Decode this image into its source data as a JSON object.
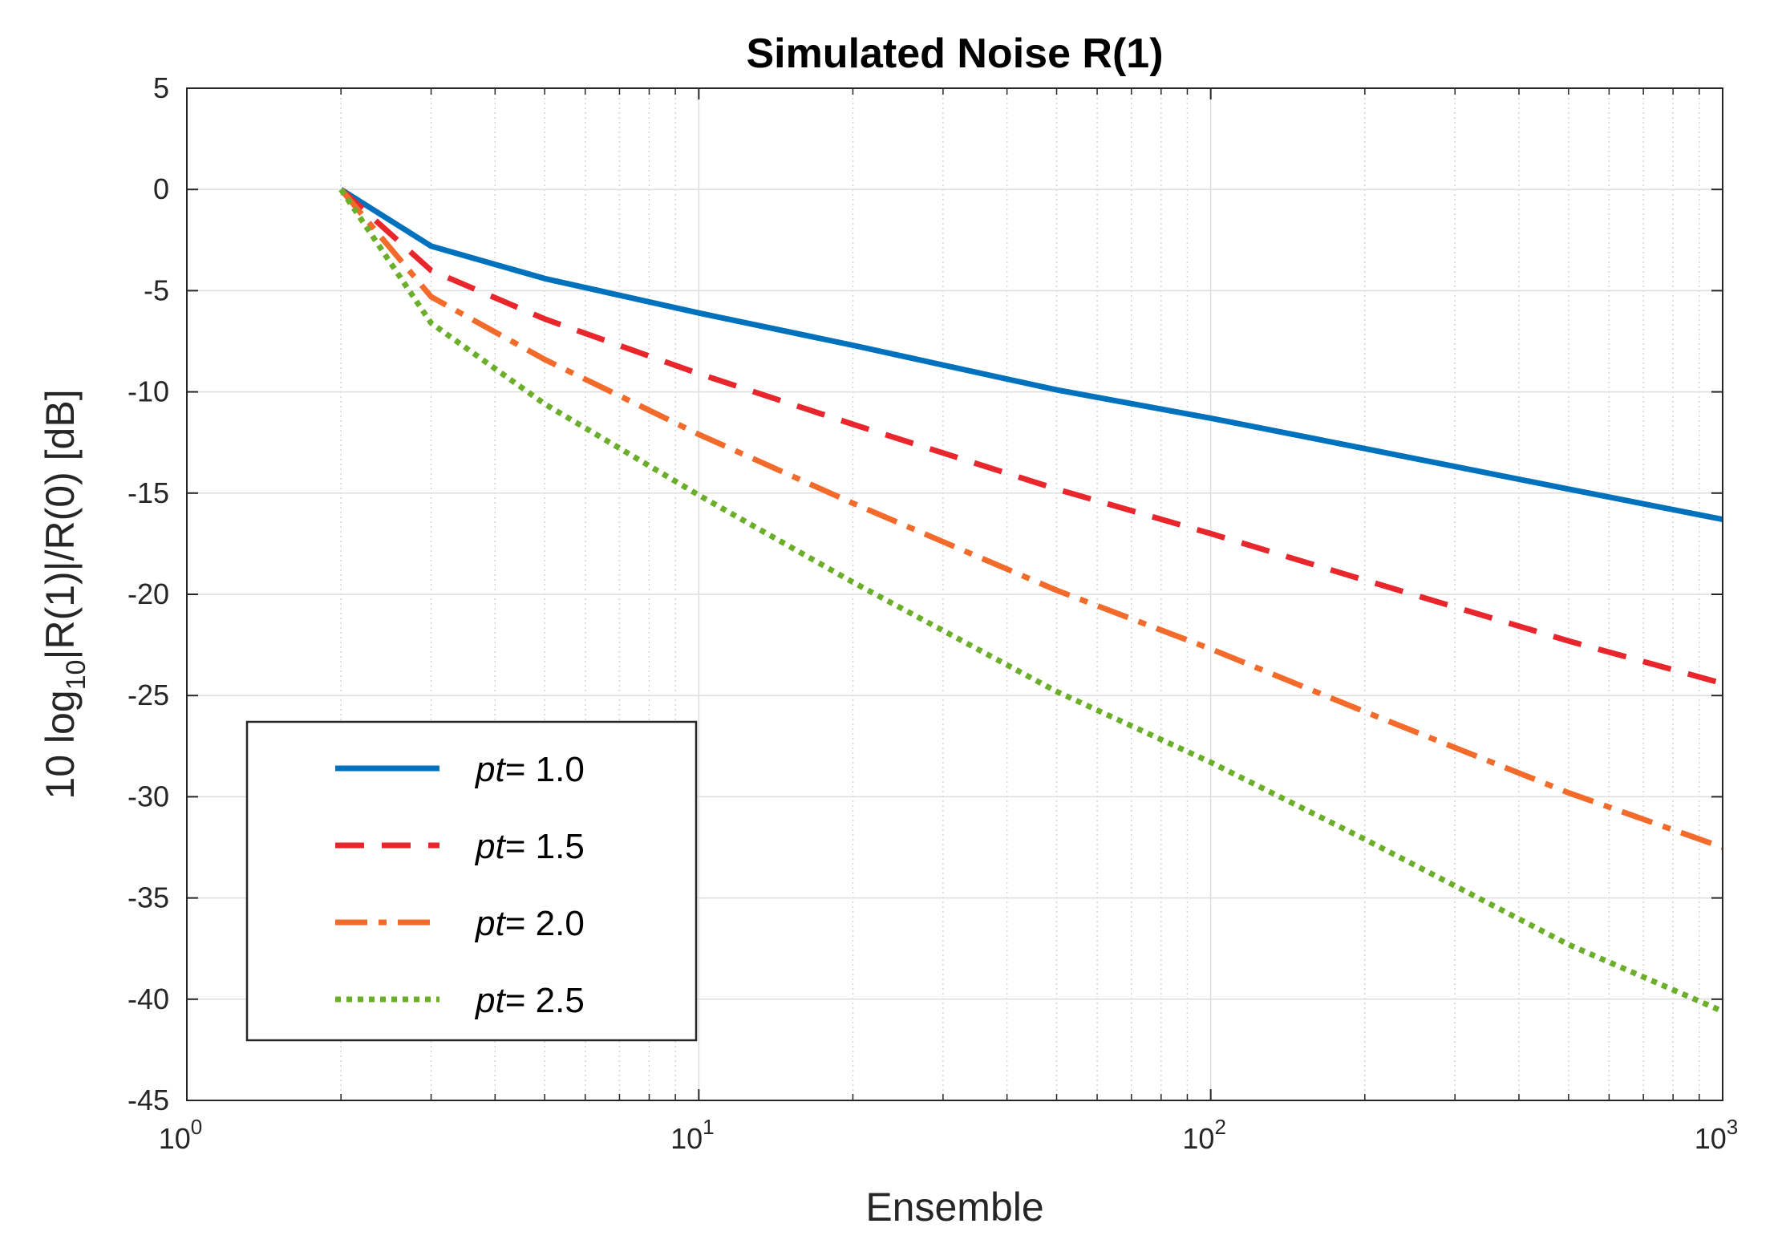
{
  "chart_data": {
    "type": "line",
    "title": "Simulated Noise R(1)",
    "xlabel": "Ensemble",
    "ylabel": {
      "prefix": "10 log",
      "subscript": "10",
      "suffix": "|R(1)|/R(0) [dB]"
    },
    "xscale": "log",
    "xlim": [
      1,
      1000
    ],
    "ylim": [
      -45,
      5
    ],
    "grid": true,
    "minor_grid": true,
    "legend_position": "bottom-left",
    "xticks": [
      {
        "value": 1,
        "base": "10",
        "exp": "0"
      },
      {
        "value": 10,
        "base": "10",
        "exp": "1"
      },
      {
        "value": 100,
        "base": "10",
        "exp": "2"
      },
      {
        "value": 1000,
        "base": "10",
        "exp": "3"
      }
    ],
    "yticks": [
      {
        "value": 5,
        "label": "5"
      },
      {
        "value": 0,
        "label": "0"
      },
      {
        "value": -5,
        "label": "-5"
      },
      {
        "value": -10,
        "label": "-10"
      },
      {
        "value": -15,
        "label": "-15"
      },
      {
        "value": -20,
        "label": "-20"
      },
      {
        "value": -25,
        "label": "-25"
      },
      {
        "value": -30,
        "label": "-30"
      },
      {
        "value": -35,
        "label": "-35"
      },
      {
        "value": -40,
        "label": "-40"
      },
      {
        "value": -45,
        "label": "-45"
      }
    ],
    "x": [
      2,
      3,
      5,
      10,
      20,
      50,
      100,
      200,
      500,
      1000
    ],
    "series": [
      {
        "name": "pt= 1.0",
        "legend_italic": "pt",
        "legend_value": "= 1.0",
        "color": "#0072BD",
        "style": "solid",
        "values": [
          0,
          -2.8,
          -4.4,
          -6.1,
          -7.7,
          -9.9,
          -11.3,
          -12.8,
          -14.8,
          -16.3
        ]
      },
      {
        "name": "pt= 1.5",
        "legend_italic": "pt",
        "legend_value": "= 1.5",
        "color": "#E8262C",
        "style": "dashed",
        "values": [
          0,
          -4.0,
          -6.4,
          -9.1,
          -11.6,
          -14.8,
          -17.0,
          -19.3,
          -22.3,
          -24.4
        ]
      },
      {
        "name": "pt= 2.0",
        "legend_italic": "pt",
        "legend_value": "= 2.0",
        "color": "#F26B2A",
        "style": "dashdot",
        "values": [
          0,
          -5.3,
          -8.4,
          -12.1,
          -15.5,
          -19.8,
          -22.7,
          -25.8,
          -29.8,
          -32.5
        ]
      },
      {
        "name": "pt= 2.5",
        "legend_italic": "pt",
        "legend_value": "= 2.5",
        "color": "#6BAE2A",
        "style": "dotted",
        "values": [
          0,
          -6.6,
          -10.6,
          -15.1,
          -19.4,
          -24.8,
          -28.3,
          -32.1,
          -37.3,
          -40.6
        ]
      }
    ]
  }
}
